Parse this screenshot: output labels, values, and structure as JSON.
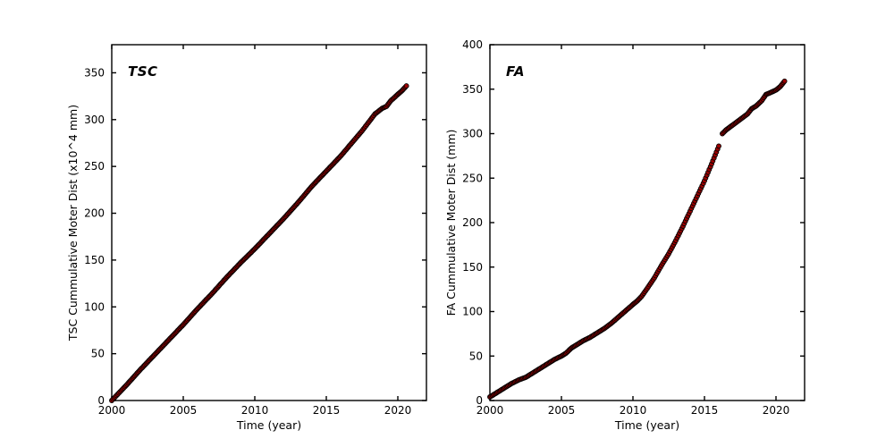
{
  "figure": {
    "background": "#ffffff",
    "axis_color": "#000000"
  },
  "chart_data": [
    {
      "type": "scatter",
      "panel_label": "TSC",
      "xlabel": "Time (year)",
      "ylabel": "TSC Cummulative Moter Dist (x10^4 mm)",
      "xlim": [
        2000,
        2022
      ],
      "ylim": [
        0,
        380
      ],
      "xticks": [
        2000,
        2005,
        2010,
        2015,
        2020
      ],
      "yticks": [
        0,
        50,
        100,
        150,
        200,
        250,
        300,
        350
      ],
      "grid": false,
      "legend": null,
      "marker": {
        "shape": "circle",
        "radius": 2.5,
        "fill": "#9b0000",
        "edge": "#000000",
        "step_years": 0.08
      },
      "series": [
        {
          "name": "TSC cumulative motor distance",
          "segments": [
            [
              [
                2000,
                0
              ],
              [
                2000.5,
                8
              ],
              [
                2001,
                16
              ],
              [
                2002,
                33
              ],
              [
                2003,
                49
              ],
              [
                2004,
                65
              ],
              [
                2005,
                81
              ],
              [
                2006,
                98
              ],
              [
                2007,
                114
              ],
              [
                2008,
                131
              ],
              [
                2009,
                147
              ],
              [
                2010,
                162
              ],
              [
                2011,
                178
              ],
              [
                2012,
                194
              ],
              [
                2013,
                211
              ],
              [
                2014,
                229
              ],
              [
                2015,
                245
              ],
              [
                2016,
                261
              ],
              [
                2017,
                279
              ],
              [
                2017.5,
                288
              ],
              [
                2018,
                298
              ],
              [
                2018.4,
                306
              ],
              [
                2018.9,
                312
              ],
              [
                2019.2,
                314
              ],
              [
                2019.5,
                320
              ],
              [
                2020,
                327
              ],
              [
                2020.3,
                331
              ],
              [
                2020.6,
                336
              ]
            ]
          ]
        }
      ]
    },
    {
      "type": "scatter",
      "panel_label": "FA",
      "xlabel": "Time (year)",
      "ylabel": "FA Cummulative Moter Dist (mm)",
      "xlim": [
        2000,
        2022
      ],
      "ylim": [
        0,
        400
      ],
      "xticks": [
        2000,
        2005,
        2010,
        2015,
        2020
      ],
      "yticks": [
        0,
        50,
        100,
        150,
        200,
        250,
        300,
        350,
        400
      ],
      "grid": false,
      "legend": null,
      "marker": {
        "shape": "circle",
        "radius": 2.5,
        "fill": "#9b0000",
        "edge": "#000000",
        "step_years": 0.08
      },
      "series": [
        {
          "name": "FA cumulative motor distance",
          "segments": [
            [
              [
                2000,
                4
              ],
              [
                2000.5,
                9
              ],
              [
                2001,
                14
              ],
              [
                2001.5,
                19
              ],
              [
                2002,
                23
              ],
              [
                2002.5,
                26
              ],
              [
                2003,
                31
              ],
              [
                2003.5,
                36
              ],
              [
                2004,
                41
              ],
              [
                2004.5,
                46
              ],
              [
                2005,
                50
              ],
              [
                2005.3,
                53
              ],
              [
                2005.7,
                59
              ],
              [
                2006,
                62
              ],
              [
                2006.5,
                67
              ],
              [
                2007,
                71
              ],
              [
                2007.5,
                76
              ],
              [
                2008,
                81
              ],
              [
                2008.5,
                87
              ],
              [
                2009,
                94
              ],
              [
                2009.5,
                101
              ],
              [
                2010,
                108
              ],
              [
                2010.3,
                112
              ],
              [
                2010.6,
                117
              ],
              [
                2011,
                126
              ],
              [
                2011.5,
                138
              ],
              [
                2012,
                152
              ],
              [
                2012.5,
                165
              ],
              [
                2013,
                180
              ],
              [
                2013.5,
                196
              ],
              [
                2014,
                213
              ],
              [
                2014.5,
                230
              ],
              [
                2015,
                247
              ],
              [
                2015.5,
                266
              ],
              [
                2016,
                286
              ]
            ],
            [
              [
                2016.25,
                300
              ],
              [
                2016.5,
                304
              ],
              [
                2017,
                310
              ],
              [
                2017.5,
                316
              ],
              [
                2018,
                322
              ],
              [
                2018.3,
                328
              ],
              [
                2018.6,
                331
              ],
              [
                2019,
                337
              ],
              [
                2019.3,
                344
              ],
              [
                2019.6,
                346
              ],
              [
                2020,
                349
              ],
              [
                2020.3,
                353
              ],
              [
                2020.6,
                359
              ]
            ]
          ]
        }
      ]
    }
  ]
}
